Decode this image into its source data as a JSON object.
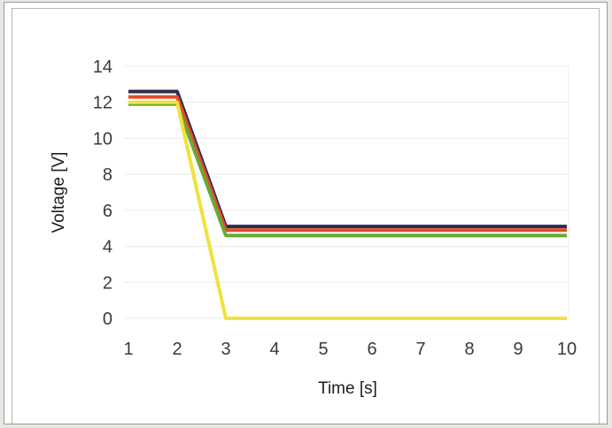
{
  "chart_data": {
    "type": "line",
    "title": "",
    "xlabel": "Time [s]",
    "ylabel": "Voltage [V]",
    "x": [
      1,
      2,
      3,
      4,
      5,
      6,
      7,
      8,
      9,
      10
    ],
    "xlim": [
      1,
      10
    ],
    "ylim": [
      0,
      14
    ],
    "x_ticks": [
      "1",
      "2",
      "3",
      "4",
      "5",
      "6",
      "7",
      "8",
      "9",
      "10"
    ],
    "y_ticks": [
      "0",
      "2",
      "4",
      "6",
      "8",
      "10",
      "12",
      "14"
    ],
    "grid": true,
    "legend": "none",
    "series": [
      {
        "color": "#2a2f4a",
        "values": [
          12.6,
          12.6,
          5.1,
          5.1,
          5.1,
          5.1,
          5.1,
          5.1,
          5.1,
          5.1
        ]
      },
      {
        "color": "#e84a2c",
        "values": [
          12.3,
          12.3,
          4.9,
          4.9,
          4.9,
          4.9,
          4.9,
          4.9,
          4.9,
          4.9
        ]
      },
      {
        "color": "#66aa33",
        "values": [
          11.9,
          11.9,
          4.6,
          4.6,
          4.6,
          4.6,
          4.6,
          4.6,
          4.6,
          4.6
        ]
      },
      {
        "color": "#f0e23a",
        "values": [
          12.0,
          12.0,
          0.0,
          0.0,
          0.0,
          0.0,
          0.0,
          0.0,
          0.0,
          0.0
        ]
      }
    ]
  }
}
